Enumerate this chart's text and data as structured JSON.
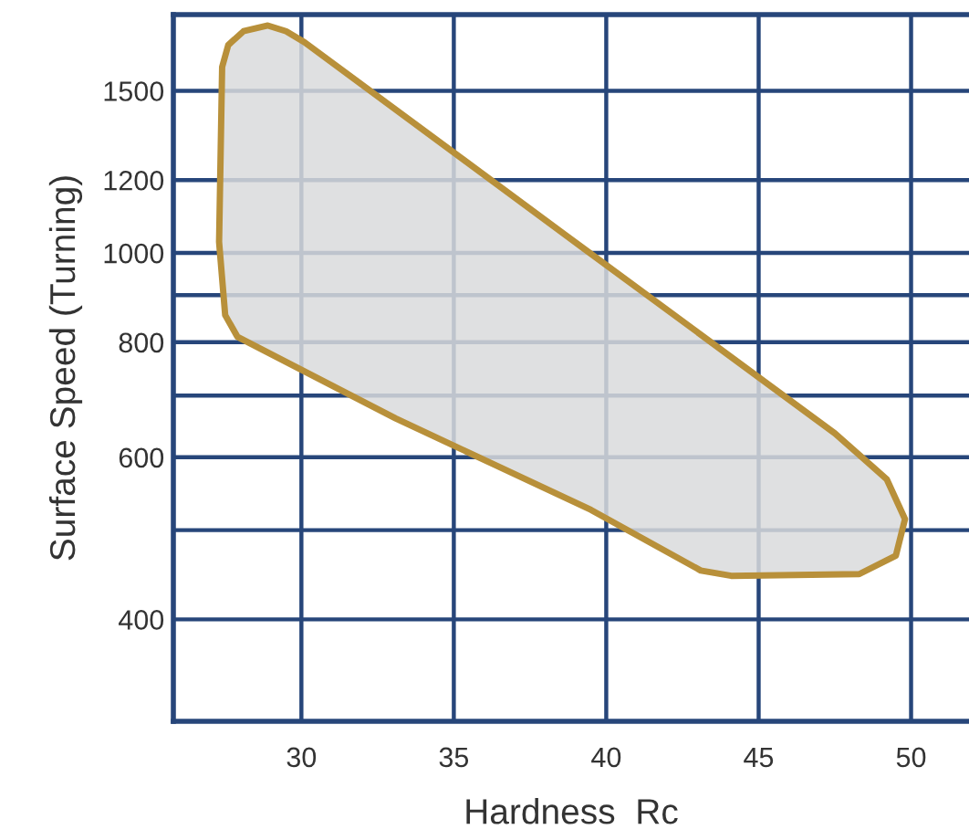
{
  "chart_data": {
    "type": "area",
    "xlabel": "Hardness  Rc",
    "ylabel": "Surface Speed (Turning)",
    "log": "y",
    "xlim": [
      25.8,
      51.9
    ],
    "ylim": [
      310,
      1815
    ],
    "xticks": [
      30,
      35,
      40,
      45,
      50
    ],
    "yticks": [
      400,
      {
        "value": 500,
        "label": null
      },
      600,
      {
        "value": 700,
        "label": null
      },
      800,
      {
        "value": 900,
        "label": null
      },
      1000,
      1200,
      1500
    ],
    "grid": true,
    "series": [
      {
        "color": "#b8903a",
        "x": [
          28.9,
          29.5,
          30.1,
          39.3,
          47.5,
          49.2,
          49.8,
          49.5,
          48.3,
          44.1,
          43.1,
          39.5,
          33.1,
          27.9,
          27.5,
          27.3,
          27.4,
          27.6,
          28.1
        ],
        "values": [
          1766,
          1741,
          1694,
          1009,
          637,
          568,
          514,
          469,
          448,
          446,
          452,
          526,
          661,
          811,
          856,
          1028,
          1592,
          1682,
          1741
        ]
      }
    ]
  }
}
